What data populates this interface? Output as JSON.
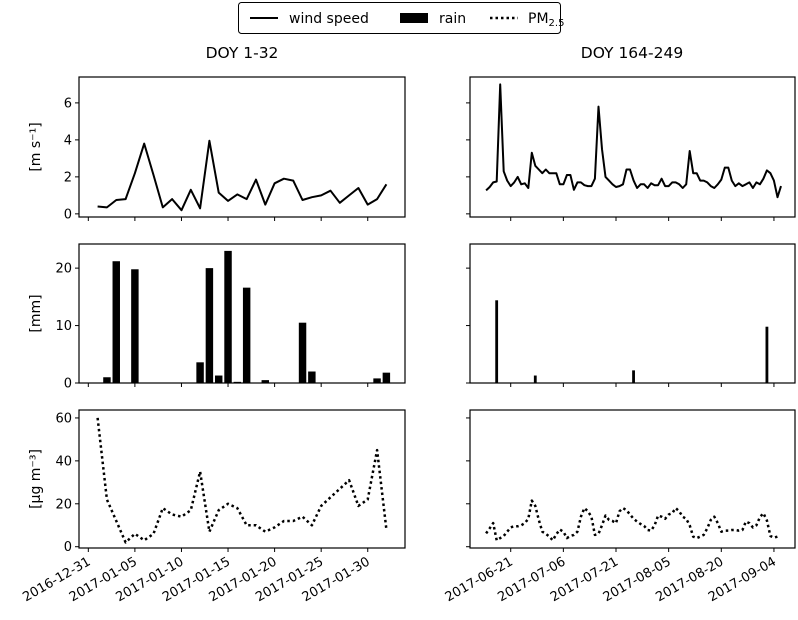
{
  "legend": {
    "position": "top-center",
    "items": [
      {
        "label": "wind speed",
        "style": "solid-line"
      },
      {
        "label": "rain",
        "style": "bar"
      },
      {
        "label": "PM",
        "subscript": "2.5",
        "style": "dotted-line"
      }
    ]
  },
  "columns": [
    {
      "title": "DOY 1-32"
    },
    {
      "title": "DOY 164-249"
    }
  ],
  "ylabels": [
    "[m s⁻¹]",
    "[mm]",
    "[µg m⁻³]"
  ],
  "chart_data": [
    {
      "type": "line",
      "series_label": "wind speed",
      "column": 0,
      "row": 0,
      "x_unit": "DOY 2017",
      "xlim": [
        -1,
        34
      ],
      "ylim": [
        -0.17,
        7.4
      ],
      "yticks": [
        0,
        2,
        4,
        6
      ],
      "ylabel": "[m s⁻¹]",
      "grid": false,
      "x": [
        1,
        2,
        3,
        4,
        5,
        6,
        7,
        8,
        9,
        10,
        11,
        12,
        13,
        14,
        15,
        16,
        17,
        18,
        19,
        20,
        21,
        22,
        23,
        24,
        25,
        26,
        27,
        28,
        29,
        30,
        31,
        32
      ],
      "y": [
        0.4,
        0.35,
        0.75,
        0.8,
        2.2,
        3.8,
        2.1,
        0.35,
        0.8,
        0.2,
        1.3,
        0.3,
        3.95,
        1.15,
        0.7,
        1.05,
        0.8,
        1.85,
        0.5,
        1.65,
        1.9,
        1.8,
        0.75,
        0.9,
        1.0,
        1.25,
        0.6,
        1.0,
        1.4,
        0.5,
        0.8,
        1.6
      ]
    },
    {
      "type": "line",
      "series_label": "wind speed",
      "column": 1,
      "row": 0,
      "x_unit": "DOY 2017",
      "xlim": [
        160.4,
        253
      ],
      "ylim": [
        -0.17,
        7.4
      ],
      "yticks": [
        0,
        2,
        4,
        6
      ],
      "grid": false,
      "x_start": 165,
      "y": [
        1.27,
        1.45,
        1.7,
        1.75,
        7.0,
        2.3,
        1.8,
        1.5,
        1.7,
        2.0,
        1.6,
        1.65,
        1.4,
        3.3,
        2.6,
        2.4,
        2.2,
        2.4,
        2.2,
        2.2,
        2.2,
        1.6,
        1.6,
        2.1,
        2.1,
        1.3,
        1.7,
        1.7,
        1.55,
        1.5,
        1.5,
        1.9,
        5.8,
        3.5,
        2.0,
        1.8,
        1.6,
        1.45,
        1.5,
        1.6,
        2.4,
        2.4,
        1.8,
        1.4,
        1.6,
        1.6,
        1.4,
        1.65,
        1.55,
        1.55,
        1.9,
        1.5,
        1.5,
        1.7,
        1.7,
        1.6,
        1.4,
        1.6,
        3.4,
        2.2,
        2.2,
        1.8,
        1.8,
        1.7,
        1.5,
        1.4,
        1.6,
        1.85,
        2.5,
        2.5,
        1.8,
        1.5,
        1.65,
        1.5,
        1.6,
        1.7,
        1.4,
        1.7,
        1.6,
        1.9,
        2.35,
        2.2,
        1.8,
        0.9,
        1.5
      ]
    },
    {
      "type": "bar",
      "series_label": "rain",
      "column": 0,
      "row": 1,
      "x_unit": "DOY 2017",
      "xlim": [
        -1,
        34
      ],
      "ylim": [
        0,
        24.2
      ],
      "yticks": [
        0,
        10,
        20
      ],
      "ylabel": "[mm]",
      "grid": false,
      "x": [
        2,
        3,
        5,
        12,
        13,
        14,
        15,
        16,
        17,
        19,
        23,
        24,
        31,
        32
      ],
      "y": [
        1.0,
        21.2,
        19.8,
        3.6,
        20.0,
        1.3,
        23.0,
        0.2,
        16.6,
        0.5,
        10.5,
        2.0,
        0.8,
        1.8
      ]
    },
    {
      "type": "bar",
      "series_label": "rain",
      "column": 1,
      "row": 1,
      "x_unit": "DOY 2017",
      "xlim": [
        160.4,
        253
      ],
      "ylim": [
        0,
        24.2
      ],
      "yticks": [
        0,
        10,
        20
      ],
      "grid": false,
      "x": [
        168,
        179,
        207,
        245
      ],
      "y": [
        14.4,
        1.3,
        2.2,
        9.8
      ]
    },
    {
      "type": "line",
      "series_label": "PM2.5",
      "column": 0,
      "row": 2,
      "x_unit": "DOY 2017",
      "xlim": [
        -1,
        34
      ],
      "ylim": [
        -0.6,
        63.7
      ],
      "yticks": [
        0,
        20,
        40,
        60
      ],
      "ylabel": "[µg m⁻³]",
      "grid": false,
      "x": [
        1,
        2,
        3,
        4,
        5,
        6,
        7,
        8,
        9,
        10,
        11,
        12,
        13,
        14,
        15,
        16,
        17,
        18,
        19,
        20,
        21,
        22,
        23,
        24,
        25,
        26,
        27,
        28,
        29,
        30,
        31,
        32
      ],
      "y": [
        60,
        22,
        12,
        2,
        6,
        3,
        6,
        18,
        15,
        14,
        17,
        35,
        7,
        17,
        20,
        18,
        10,
        10,
        7,
        9,
        12,
        12,
        14,
        10,
        19,
        23,
        27,
        31,
        19,
        22,
        45,
        8
      ],
      "xticks": [
        0,
        5,
        10,
        15,
        20,
        25,
        30
      ],
      "xticklabels": [
        "2016-12-31",
        "2017-01-05",
        "2017-01-10",
        "2017-01-15",
        "2017-01-20",
        "2017-01-25",
        "2017-01-30"
      ]
    },
    {
      "type": "line",
      "series_label": "PM2.5",
      "column": 1,
      "row": 2,
      "x_unit": "DOY 2017",
      "xlim": [
        160.4,
        253
      ],
      "ylim": [
        -0.6,
        63.7
      ],
      "yticks": [
        0,
        20,
        40,
        60
      ],
      "grid": false,
      "x_start": 165,
      "y": [
        6.2,
        8.6,
        11,
        3,
        4,
        5,
        7,
        9,
        9.5,
        9.5,
        10,
        11,
        13,
        21.5,
        19,
        12.5,
        7,
        6,
        4.7,
        3,
        5.8,
        8,
        7,
        4,
        5,
        5.5,
        7,
        14,
        18,
        16.5,
        14,
        5.5,
        6,
        10,
        14.5,
        12.5,
        12,
        11,
        16.5,
        18,
        17,
        15,
        13,
        11.7,
        10.6,
        9.7,
        7.8,
        7.5,
        10,
        14.5,
        14,
        13,
        15,
        15.6,
        18,
        16.5,
        14,
        13,
        10,
        4.7,
        4,
        4.7,
        5.5,
        8.6,
        12.5,
        14,
        11,
        7,
        7.5,
        7.5,
        7.8,
        7.8,
        7.5,
        7.8,
        11.7,
        11,
        9,
        10,
        13.8,
        15.6,
        12.2,
        5,
        4.2,
        4.7
      ],
      "xticks": [
        172,
        187,
        202,
        217,
        232,
        247
      ],
      "xticklabels": [
        "2017-06-21",
        "2017-07-06",
        "2017-07-21",
        "2017-08-05",
        "2017-08-20",
        "2017-09-04"
      ]
    }
  ]
}
